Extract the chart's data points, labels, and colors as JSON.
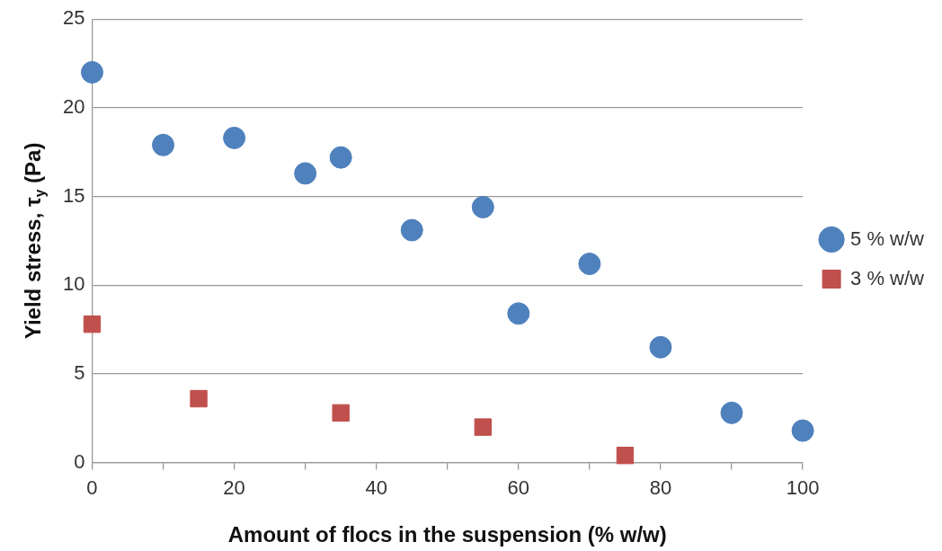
{
  "chart_data": {
    "type": "scatter",
    "xlabel": "Amount of flocs in the suspension (% w/w)",
    "ylabel": "Yield stress, τ$_{y}$ (Pa)",
    "xlim": [
      0,
      100
    ],
    "xticks": [
      0,
      {
        "value": 10,
        "label": null
      },
      20,
      {
        "value": 30,
        "label": null
      },
      40,
      {
        "value": 50,
        "label": null
      },
      60,
      {
        "value": 70,
        "label": null
      },
      80,
      {
        "value": 90,
        "label": null
      },
      100
    ],
    "ylim": [
      0,
      25
    ],
    "yticks": [
      0,
      5,
      10,
      15,
      20,
      25
    ],
    "grid": "y",
    "legend": "right",
    "series": [
      {
        "name": "5 % w/w",
        "color": "#4f81bd",
        "marker": "circle",
        "x": [
          0,
          10,
          20,
          30,
          35,
          45,
          55,
          60,
          70,
          80,
          90,
          100
        ],
        "values": [
          22.0,
          17.9,
          18.3,
          16.3,
          17.2,
          13.1,
          14.4,
          8.4,
          11.2,
          6.5,
          2.8,
          1.8
        ]
      },
      {
        "name": "3 % w/w",
        "color": "#c0504d",
        "marker": "square",
        "x": [
          0,
          15,
          35,
          55,
          75
        ],
        "values": [
          7.8,
          3.6,
          2.8,
          2.0,
          0.4
        ]
      }
    ]
  }
}
